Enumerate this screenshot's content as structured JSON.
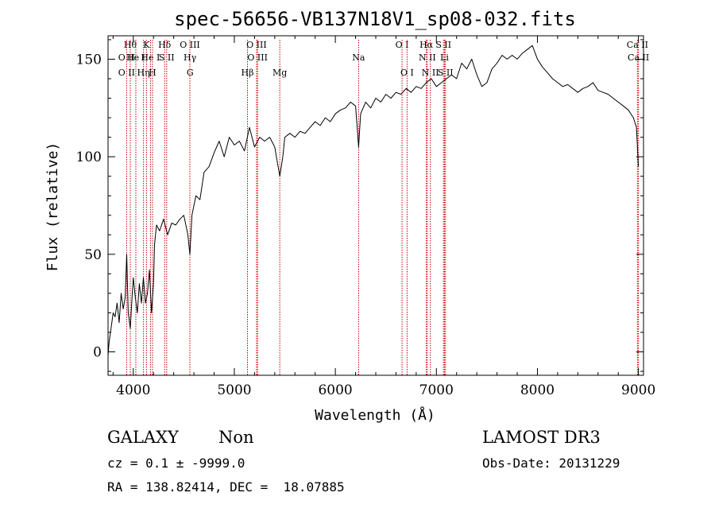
{
  "chart_data": {
    "type": "line",
    "title": "spec-56656-VB137N18V1_sp08-032.fits",
    "xlabel": "Wavelength (Å)",
    "ylabel": "Flux (relative)",
    "xlim": [
      3750,
      9050
    ],
    "ylim": [
      -12,
      162
    ],
    "xticks": [
      4000,
      5000,
      6000,
      7000,
      8000,
      9000
    ],
    "yticks": [
      0,
      50,
      100,
      150
    ],
    "grid": false,
    "series": [
      {
        "color": "#000000",
        "points": [
          [
            3750,
            -2
          ],
          [
            3760,
            5
          ],
          [
            3780,
            12
          ],
          [
            3800,
            20
          ],
          [
            3820,
            18
          ],
          [
            3840,
            25
          ],
          [
            3860,
            15
          ],
          [
            3880,
            30
          ],
          [
            3900,
            22
          ],
          [
            3920,
            28
          ],
          [
            3935,
            50
          ],
          [
            3950,
            20
          ],
          [
            3970,
            12
          ],
          [
            3990,
            30
          ],
          [
            4000,
            38
          ],
          [
            4020,
            28
          ],
          [
            4040,
            20
          ],
          [
            4060,
            35
          ],
          [
            4080,
            25
          ],
          [
            4100,
            38
          ],
          [
            4120,
            25
          ],
          [
            4140,
            30
          ],
          [
            4160,
            42
          ],
          [
            4180,
            20
          ],
          [
            4200,
            35
          ],
          [
            4210,
            55
          ],
          [
            4230,
            65
          ],
          [
            4260,
            62
          ],
          [
            4300,
            68
          ],
          [
            4340,
            60
          ],
          [
            4380,
            66
          ],
          [
            4420,
            65
          ],
          [
            4460,
            68
          ],
          [
            4500,
            70
          ],
          [
            4540,
            60
          ],
          [
            4560,
            50
          ],
          [
            4580,
            70
          ],
          [
            4620,
            80
          ],
          [
            4660,
            78
          ],
          [
            4700,
            92
          ],
          [
            4750,
            95
          ],
          [
            4800,
            102
          ],
          [
            4850,
            108
          ],
          [
            4900,
            100
          ],
          [
            4950,
            110
          ],
          [
            5000,
            106
          ],
          [
            5050,
            108
          ],
          [
            5100,
            103
          ],
          [
            5150,
            115
          ],
          [
            5200,
            105
          ],
          [
            5250,
            110
          ],
          [
            5300,
            108
          ],
          [
            5350,
            110
          ],
          [
            5400,
            105
          ],
          [
            5450,
            90
          ],
          [
            5480,
            100
          ],
          [
            5500,
            110
          ],
          [
            5550,
            112
          ],
          [
            5600,
            110
          ],
          [
            5650,
            113
          ],
          [
            5700,
            112
          ],
          [
            5750,
            115
          ],
          [
            5800,
            118
          ],
          [
            5850,
            116
          ],
          [
            5900,
            120
          ],
          [
            5950,
            118
          ],
          [
            6000,
            122
          ],
          [
            6050,
            124
          ],
          [
            6100,
            125
          ],
          [
            6150,
            128
          ],
          [
            6200,
            126
          ],
          [
            6230,
            105
          ],
          [
            6250,
            122
          ],
          [
            6300,
            128
          ],
          [
            6350,
            125
          ],
          [
            6400,
            130
          ],
          [
            6450,
            128
          ],
          [
            6500,
            132
          ],
          [
            6550,
            130
          ],
          [
            6600,
            133
          ],
          [
            6650,
            132
          ],
          [
            6700,
            135
          ],
          [
            6750,
            133
          ],
          [
            6800,
            136
          ],
          [
            6850,
            135
          ],
          [
            6900,
            138
          ],
          [
            6950,
            140
          ],
          [
            7000,
            136
          ],
          [
            7050,
            138
          ],
          [
            7100,
            140
          ],
          [
            7150,
            142
          ],
          [
            7200,
            140
          ],
          [
            7250,
            148
          ],
          [
            7300,
            145
          ],
          [
            7350,
            150
          ],
          [
            7400,
            142
          ],
          [
            7450,
            136
          ],
          [
            7500,
            138
          ],
          [
            7550,
            145
          ],
          [
            7600,
            148
          ],
          [
            7650,
            152
          ],
          [
            7700,
            150
          ],
          [
            7750,
            152
          ],
          [
            7800,
            150
          ],
          [
            7850,
            153
          ],
          [
            7900,
            155
          ],
          [
            7950,
            157
          ],
          [
            8000,
            150
          ],
          [
            8050,
            146
          ],
          [
            8100,
            143
          ],
          [
            8150,
            140
          ],
          [
            8200,
            138
          ],
          [
            8250,
            136
          ],
          [
            8300,
            137
          ],
          [
            8350,
            135
          ],
          [
            8400,
            133
          ],
          [
            8450,
            135
          ],
          [
            8500,
            136
          ],
          [
            8550,
            138
          ],
          [
            8600,
            134
          ],
          [
            8650,
            133
          ],
          [
            8700,
            132
          ],
          [
            8750,
            130
          ],
          [
            8800,
            128
          ],
          [
            8850,
            126
          ],
          [
            8900,
            124
          ],
          [
            8950,
            120
          ],
          [
            8980,
            115
          ],
          [
            9000,
            95
          ]
        ]
      }
    ],
    "line_markers": [
      {
        "x": 3934,
        "row": 1,
        "label": "O II"
      },
      {
        "x": 3934,
        "row": 2,
        "label": "O II"
      },
      {
        "x": 3970,
        "row": 0,
        "label": "Hθ"
      },
      {
        "x": 4025,
        "row": 1,
        "label": "He I"
      },
      {
        "x": 4101,
        "row": 2,
        "label": "Hη"
      },
      {
        "x": 4130,
        "row": 0,
        "label": "K"
      },
      {
        "x": 4170,
        "row": 1,
        "label": "He I"
      },
      {
        "x": 4190,
        "row": 2,
        "label": "H"
      },
      {
        "x": 4310,
        "row": 0,
        "label": "Hδ"
      },
      {
        "x": 4330,
        "row": 1,
        "label": "S II"
      },
      {
        "x": 4560,
        "row": 0,
        "label": "O III"
      },
      {
        "x": 4561,
        "row": 1,
        "label": "Hγ"
      },
      {
        "x": 4562,
        "row": 2,
        "label": "G"
      },
      {
        "x": 5130,
        "row": 2,
        "label": "Hβ"
      },
      {
        "x": 5220,
        "row": 0,
        "label": "O III"
      },
      {
        "x": 5230,
        "row": 1,
        "label": "O III"
      },
      {
        "x": 5450,
        "row": 2,
        "label": "Mg"
      },
      {
        "x": 6230,
        "row": 1,
        "label": "Na"
      },
      {
        "x": 6660,
        "row": 0,
        "label": "O I"
      },
      {
        "x": 6710,
        "row": 2,
        "label": "O I"
      },
      {
        "x": 6900,
        "row": 0,
        "label": "Hα"
      },
      {
        "x": 6910,
        "row": 1,
        "label": "N II"
      },
      {
        "x": 6940,
        "row": 2,
        "label": "N II"
      },
      {
        "x": 7070,
        "row": 0,
        "label": "S II"
      },
      {
        "x": 7080,
        "row": 1,
        "label": "Li"
      },
      {
        "x": 7090,
        "row": 2,
        "label": "S II"
      },
      {
        "x": 8990,
        "row": 0,
        "label": "Ca II"
      },
      {
        "x": 9000,
        "row": 1,
        "label": "Ca II"
      }
    ],
    "marker_color": "#cc0000"
  },
  "info": {
    "class_label": "GALAXY",
    "subclass_label": "Non",
    "survey": "LAMOST DR3",
    "cz": "cz = 0.1 ± -9999.0",
    "obs_date": "Obs-Date: 20131229",
    "coords": "RA = 138.82414, DEC =  18.07885"
  }
}
